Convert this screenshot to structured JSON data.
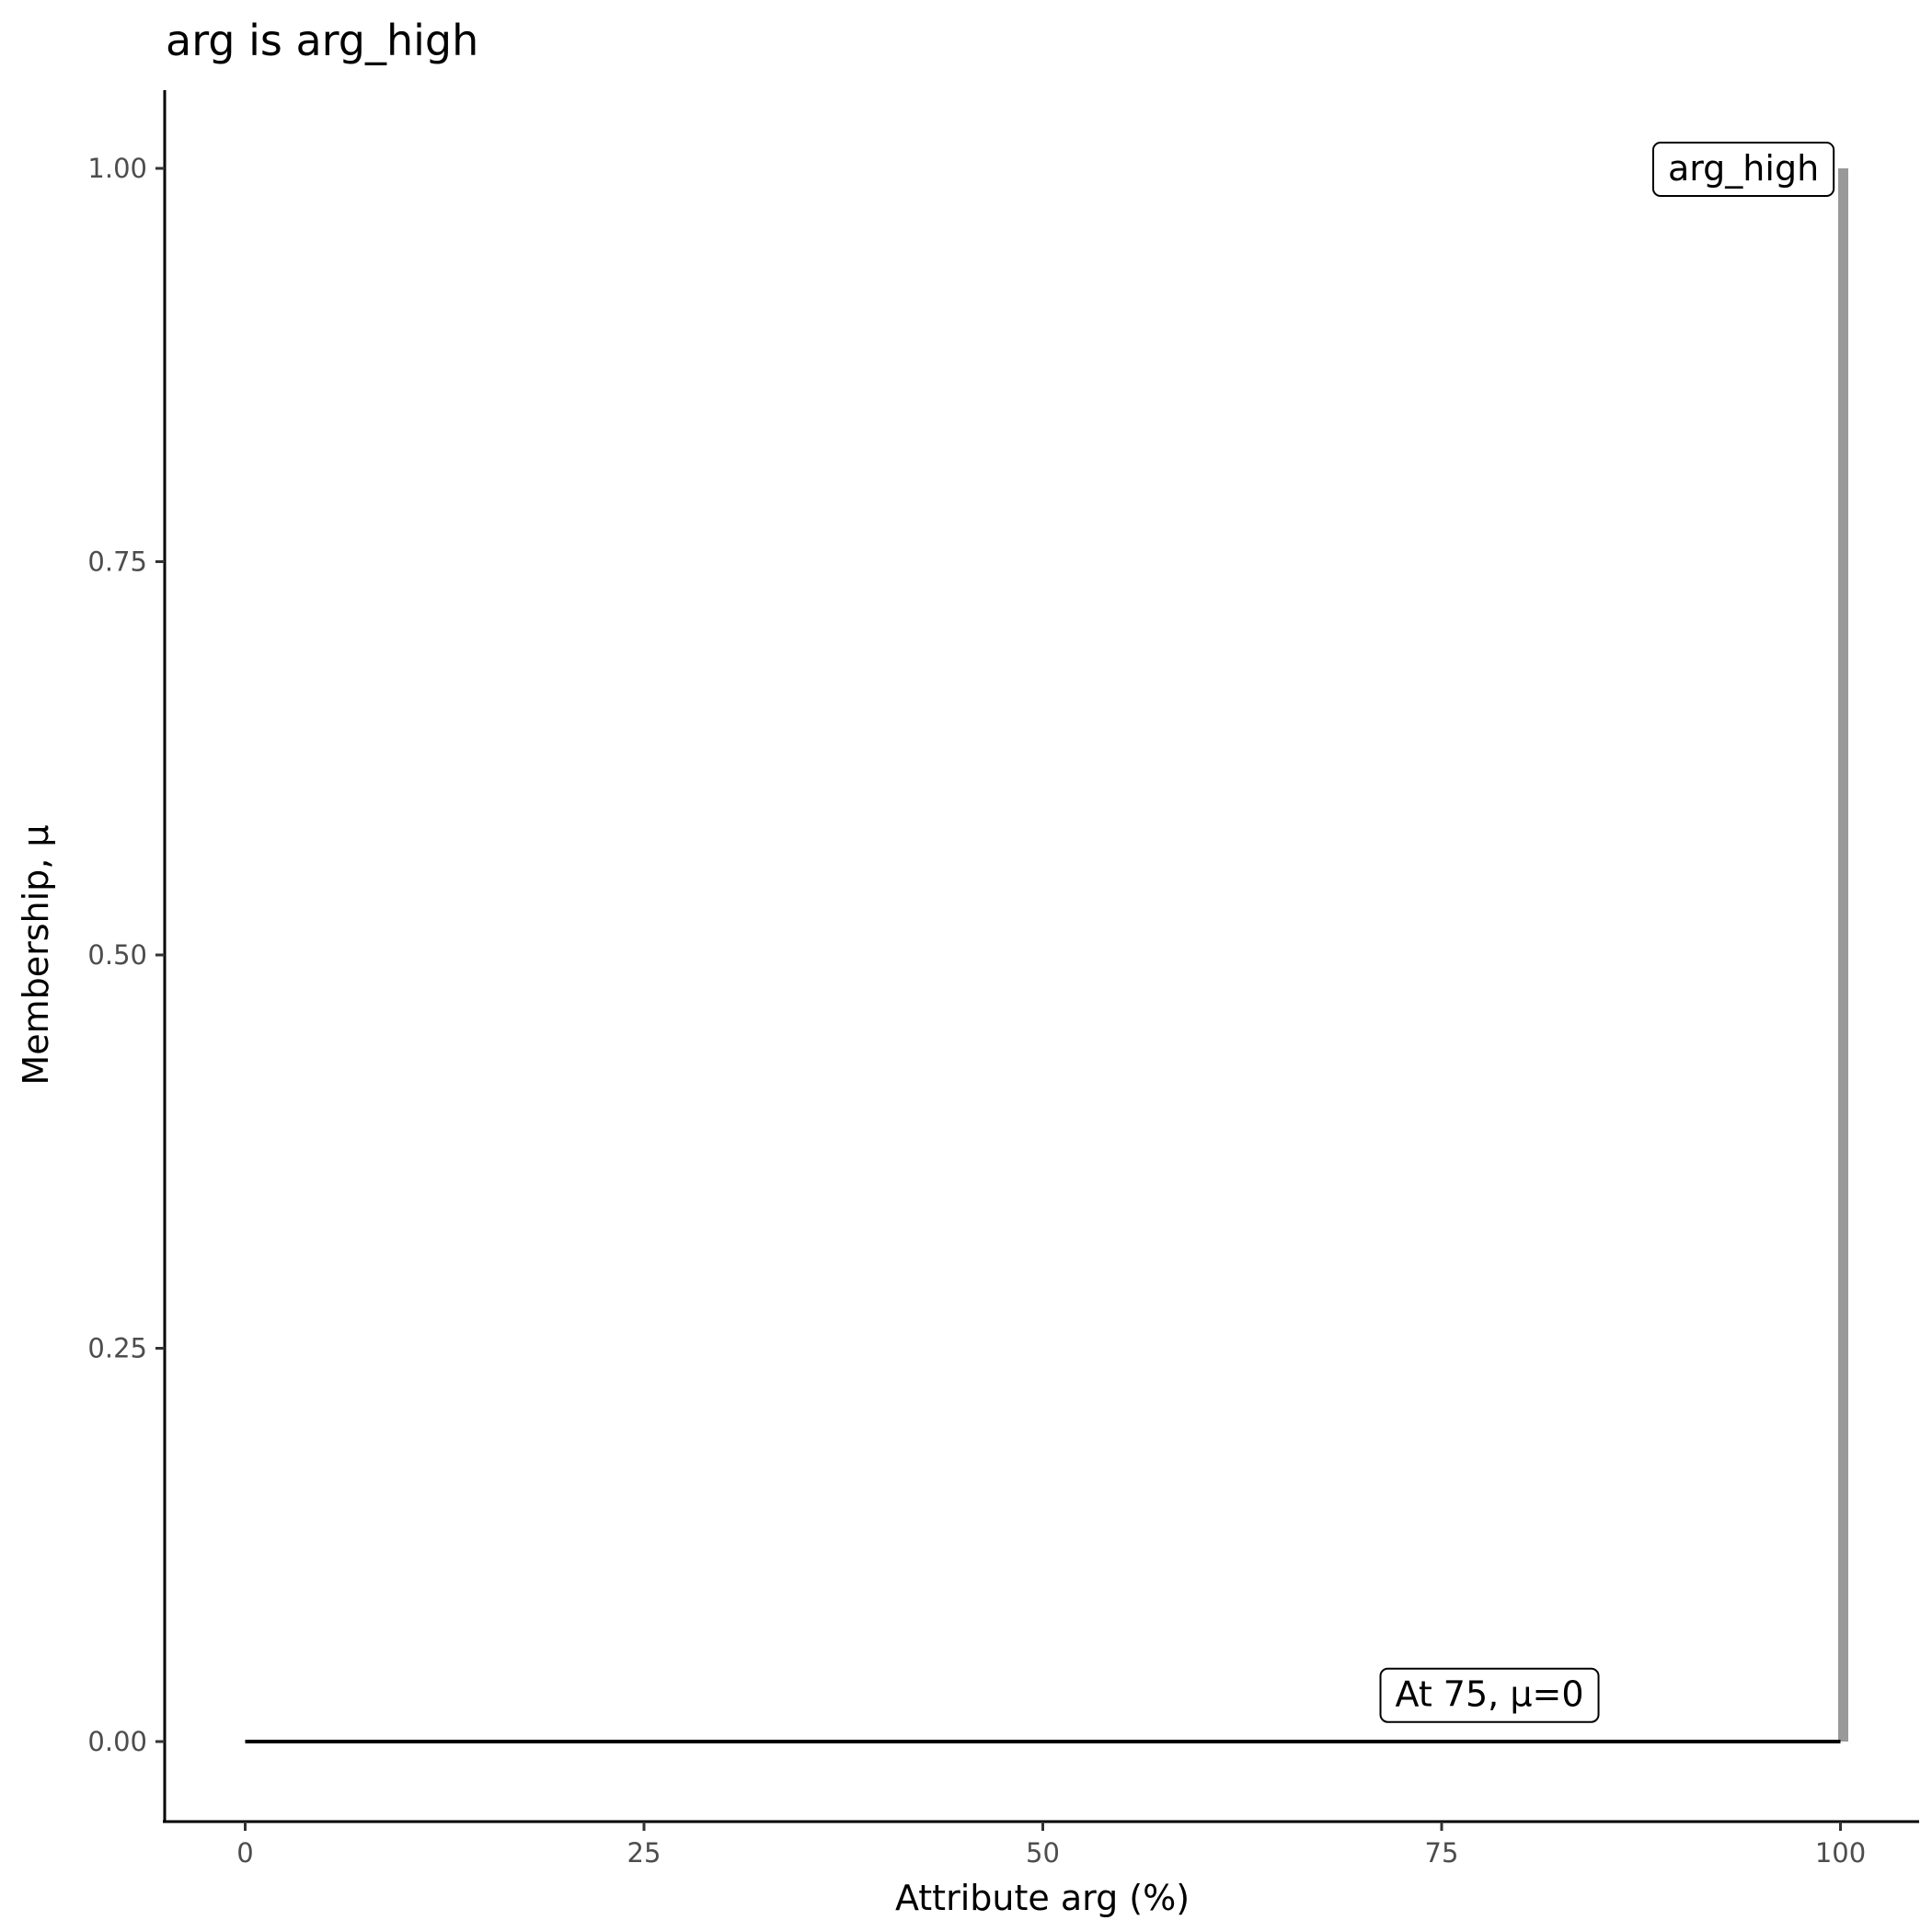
{
  "chart_data": {
    "type": "line",
    "title": "arg is arg_high",
    "xlabel": "Attribute arg (%)",
    "ylabel": "Membership, μ",
    "xlim": [
      -5,
      105
    ],
    "ylim": [
      -0.05,
      1.05
    ],
    "x_ticks": [
      0,
      25,
      50,
      75,
      100
    ],
    "x_tick_labels": [
      "0",
      "25",
      "50",
      "75",
      "100"
    ],
    "y_ticks": [
      0,
      0.25,
      0.5,
      0.75,
      1
    ],
    "y_tick_labels": [
      "0.00",
      "0.25",
      "0.50",
      "0.75",
      "1.00"
    ],
    "grid": false,
    "series": [
      {
        "x": [
          0,
          100
        ],
        "y": [
          0,
          0
        ],
        "color": "#000000"
      },
      {
        "x": [
          100,
          100
        ],
        "y": [
          0,
          1
        ],
        "color": "#999999"
      }
    ],
    "annotations": [
      {
        "text": "arg_high",
        "x": 99,
        "y": 1.0
      },
      {
        "text": "At 75, μ=0",
        "x": 78,
        "y": 0.03
      }
    ]
  }
}
